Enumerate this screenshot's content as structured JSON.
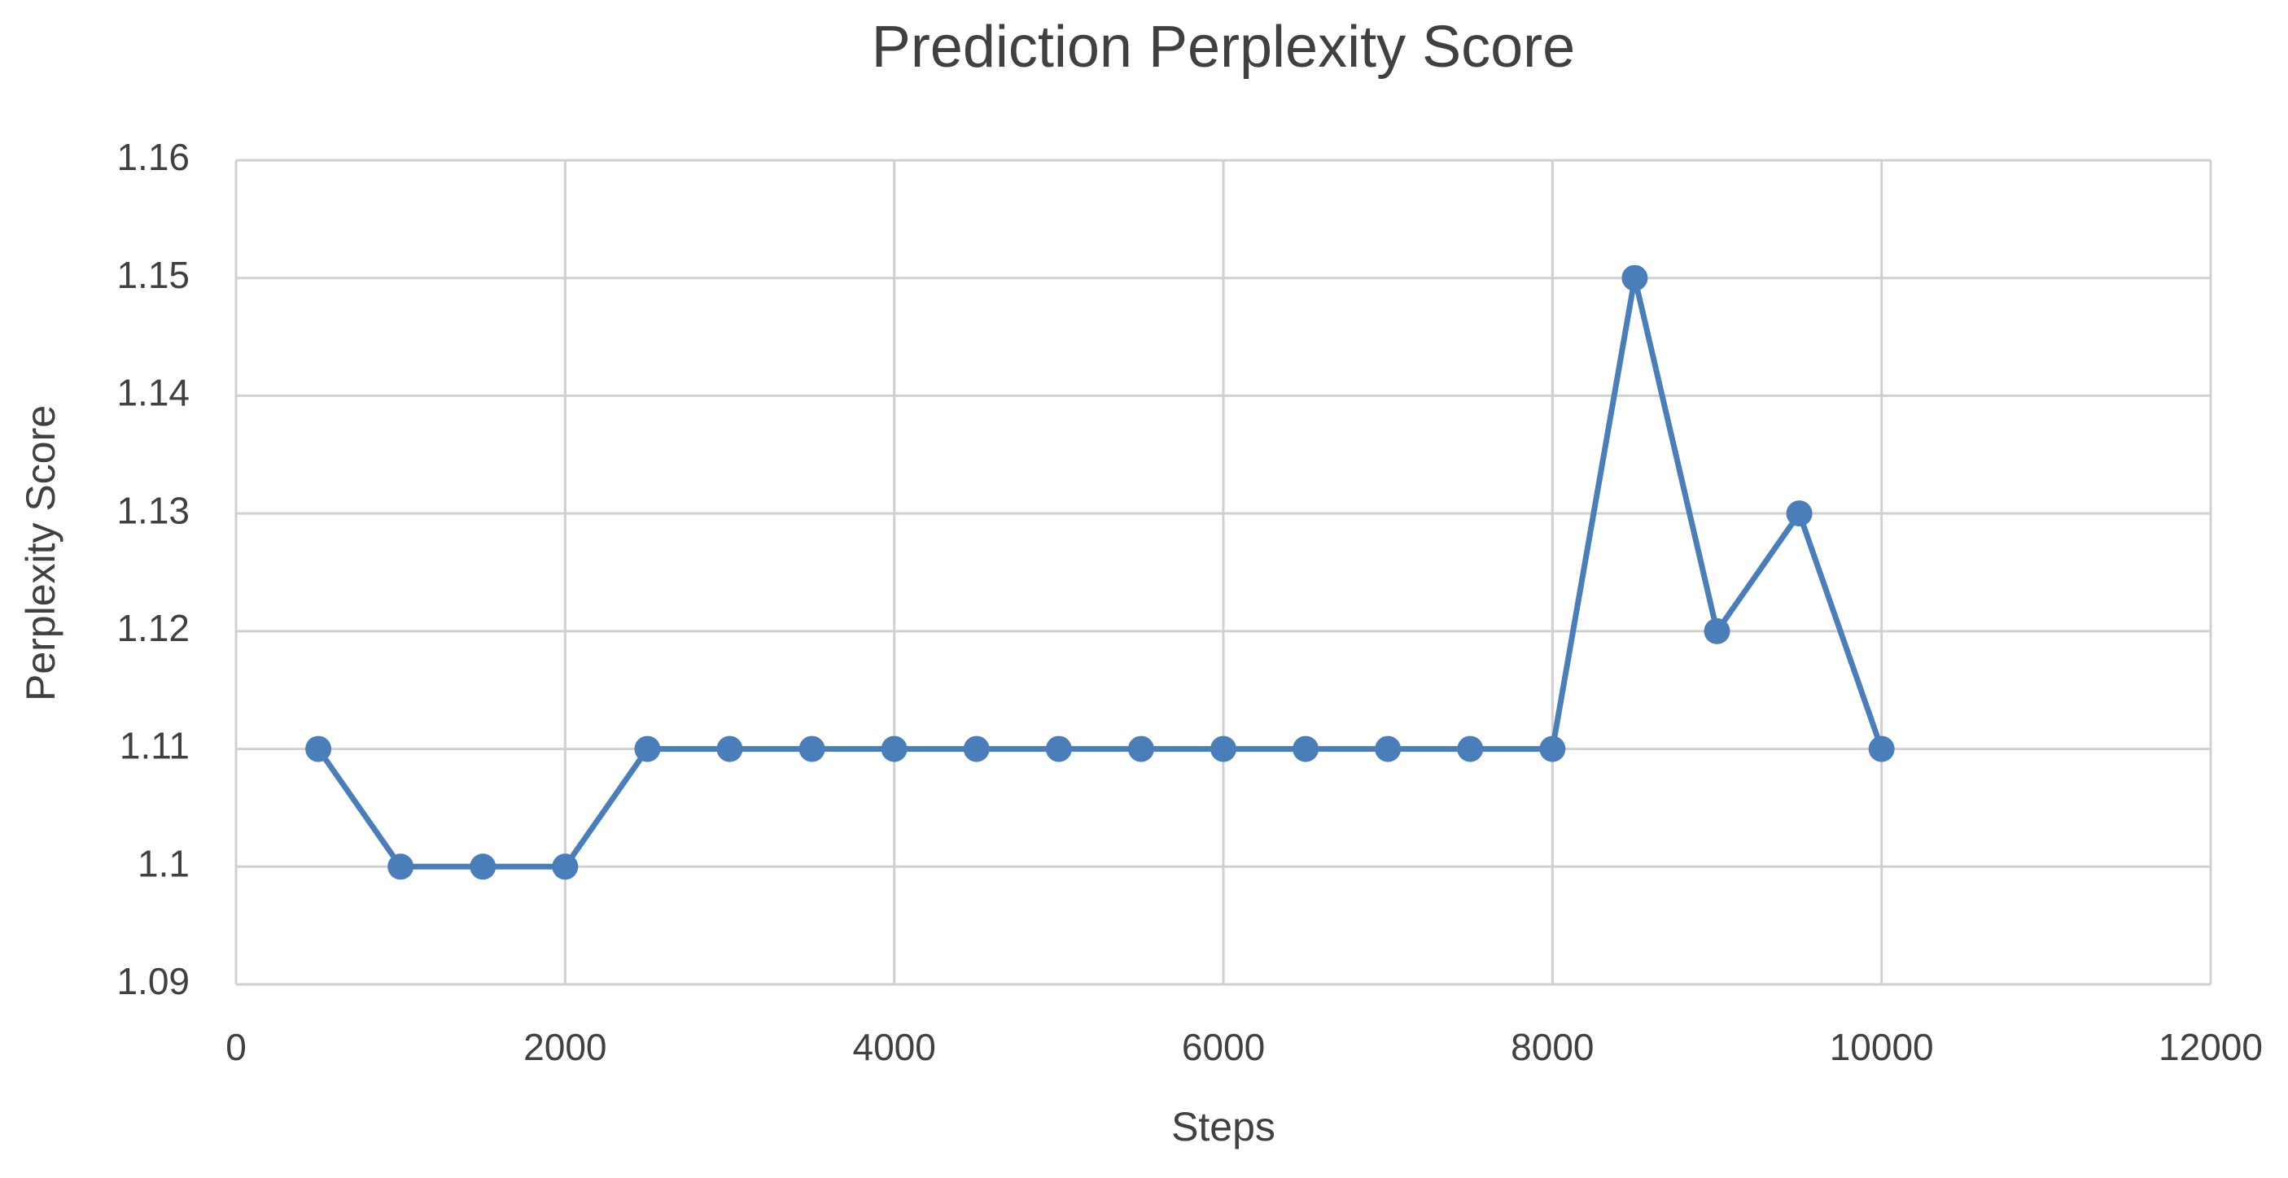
{
  "chart_data": {
    "type": "line",
    "title": "Prediction Perplexity Score",
    "x_label": "Steps",
    "y_label": "Perplexity Score",
    "x": [
      500,
      1000,
      1500,
      2000,
      2500,
      3000,
      3500,
      4000,
      4500,
      5000,
      5500,
      6000,
      6500,
      7000,
      7500,
      8000,
      8500,
      9000,
      9500,
      10000
    ],
    "series": [
      {
        "name": "Perplexity Score",
        "color": "#4a7ebb",
        "values": [
          1.11,
          1.1,
          1.1,
          1.1,
          1.11,
          1.11,
          1.11,
          1.11,
          1.11,
          1.11,
          1.11,
          1.11,
          1.11,
          1.11,
          1.11,
          1.11,
          1.15,
          1.12,
          1.13,
          1.11
        ]
      }
    ],
    "xlim": [
      0,
      12000
    ],
    "xticks": [
      0,
      2000,
      4000,
      6000,
      8000,
      10000,
      12000
    ],
    "ylim": [
      1.09,
      1.16
    ],
    "yticks": [
      1.09,
      1.1,
      1.11,
      1.12,
      1.13,
      1.14,
      1.15,
      1.16
    ],
    "grid": true,
    "markers": true
  }
}
